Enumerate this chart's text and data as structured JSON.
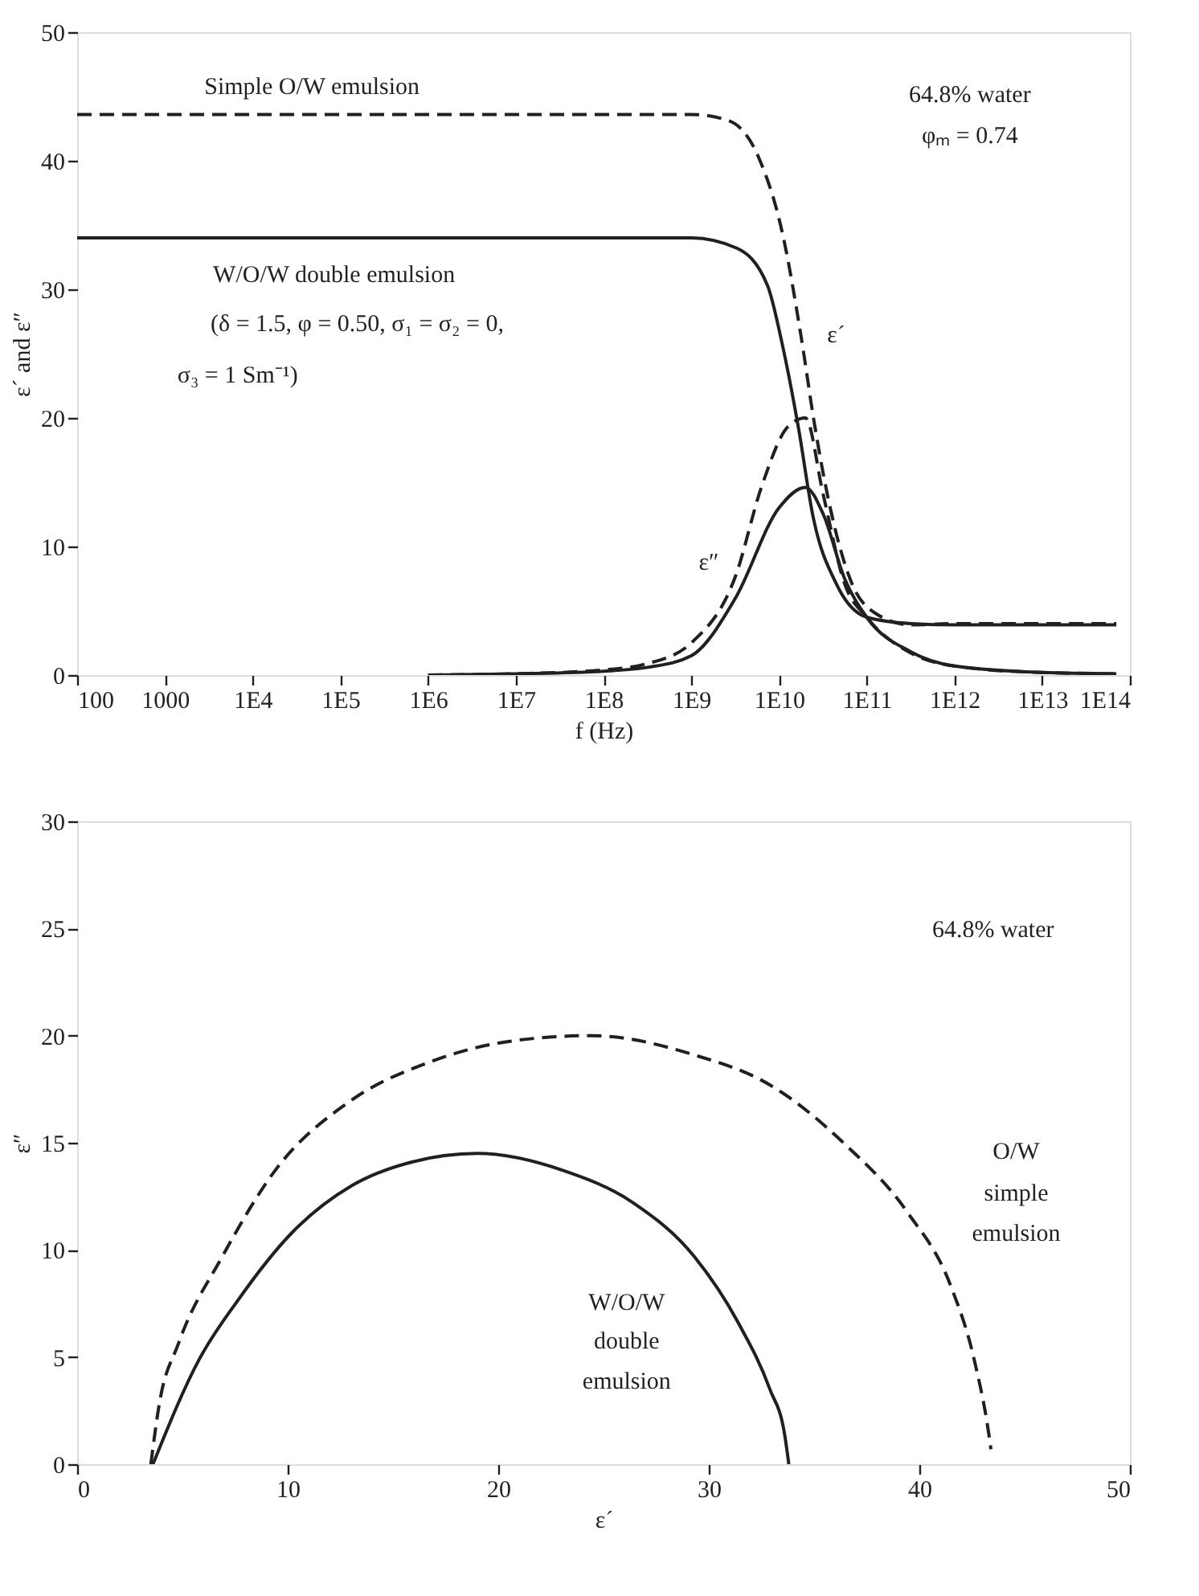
{
  "chart_data": [
    {
      "type": "line",
      "xlabel": "f (Hz)",
      "ylabel": "ε´ and ε″",
      "log": "x",
      "xlim": [
        100,
        100000000000000.0
      ],
      "ylim": [
        0,
        50
      ],
      "xticks": [
        100,
        {
          "value": 1000,
          "label": "1000"
        },
        {
          "value": 10000.0,
          "label": "1E4"
        },
        {
          "value": 100000.0,
          "label": "1E5"
        },
        {
          "value": 1000000.0,
          "label": "1E6"
        },
        {
          "value": 10000000.0,
          "label": "1E7"
        },
        {
          "value": 100000000.0,
          "label": "1E8"
        },
        {
          "value": 1000000000.0,
          "label": "1E9"
        },
        {
          "value": 10000000000.0,
          "label": "1E10"
        },
        {
          "value": 100000000000.0,
          "label": "1E11"
        },
        {
          "value": 1000000000000.0,
          "label": "1E12"
        },
        {
          "value": 10000000000000.0,
          "label": "1E13"
        },
        {
          "value": 100000000000000.0,
          "label": "1E14"
        }
      ],
      "yticks": [
        0,
        10,
        20,
        30,
        40,
        50
      ],
      "marker": "none",
      "series": [
        {
          "color": "#231f20",
          "line_style": "dashed",
          "x": [
            100,
            1000000000.0,
            2700000000.0,
            6000000000.0,
            11000000000.0,
            18000000000.0,
            25000000000.0,
            37000000000.0,
            68000000000.0,
            126000000000.0,
            320000000000.0,
            1000000000000.0,
            10000000000000.0,
            70000000000000.0
          ],
          "values": [
            43.6,
            43.6,
            43.1,
            40.1,
            34.3,
            26.2,
            19.8,
            13.5,
            7.1,
            4.8,
            3.9,
            4.0,
            4.0,
            4.0
          ]
        },
        {
          "color": "#231f20",
          "line_style": "solid",
          "x": [
            100,
            1000000000.0,
            3300000000.0,
            7400000000.0,
            11000000000.0,
            16600000000.0,
            24500000000.0,
            45000000000.0,
            100000000000.0,
            320000000000.0,
            1000000000000.0,
            10000000000000.0,
            70000000000000.0
          ],
          "values": [
            34.0,
            34.0,
            33.2,
            30.3,
            25.6,
            19.3,
            12.3,
            7.1,
            4.5,
            4.0,
            3.9,
            3.9,
            3.9
          ]
        },
        {
          "color": "#231f20",
          "line_style": "dashed",
          "x": [
            1000000.0,
            10000000.0,
            100000000.0,
            320000000.0,
            1000000000.0,
            3200000000.0,
            6300000000.0,
            12600000000.0,
            20000000000.0,
            32000000000.0,
            56000000000.0,
            100000000000.0,
            320000000000.0,
            1000000000000.0,
            10000000000000.0,
            70000000000000.0
          ],
          "values": [
            0.0,
            0.1,
            0.4,
            0.9,
            2.5,
            7.7,
            14.6,
            19.3,
            20.0,
            14.0,
            7.1,
            4.5,
            1.7,
            0.7,
            0.2,
            0.1
          ]
        },
        {
          "color": "#231f20",
          "line_style": "solid",
          "x": [
            1000000.0,
            10000000.0,
            100000000.0,
            320000000.0,
            1000000000.0,
            3200000000.0,
            10000000000.0,
            20000000000.0,
            32000000000.0,
            56000000000.0,
            100000000000.0,
            320000000000.0,
            1000000000000.0,
            10000000000000.0,
            70000000000000.0
          ],
          "values": [
            0.0,
            0.1,
            0.3,
            0.6,
            1.5,
            6.0,
            13.0,
            14.6,
            12.5,
            7.5,
            4.5,
            1.8,
            0.7,
            0.2,
            0.1
          ]
        }
      ],
      "annotations": [
        "Simple O/W emulsion",
        "64.8% water",
        "φₘ = 0.74",
        "W/O/W double emulsion",
        "(δ = 1.5, φ = 0.50, σ₁ = σ₂ = 0,",
        "σ₃ = 1 Sm⁻¹)",
        "ε´",
        "ε″"
      ]
    },
    {
      "type": "line",
      "xlabel": "ε´",
      "ylabel": "ε″",
      "xlim": [
        0,
        50
      ],
      "ylim": [
        0,
        30
      ],
      "xticks": [
        0,
        10,
        20,
        30,
        40,
        50
      ],
      "yticks": [
        0,
        5,
        10,
        15,
        20,
        25,
        30
      ],
      "marker": "none",
      "series": [
        {
          "color": "#231f20",
          "line_style": "dashed",
          "x": [
            3.5,
            3.9,
            4.8,
            6.9,
            9.4,
            13.05,
            16.7,
            20.3,
            24.4,
            29.3,
            32.9,
            36.5,
            39.4,
            41.5,
            42.6,
            43.3,
            43.4
          ],
          "values": [
            0,
            2.8,
            5.6,
            9.7,
            13.7,
            17.0,
            18.75,
            19.7,
            20.0,
            19.1,
            17.7,
            14.9,
            11.8,
            8.3,
            4.9,
            1.4,
            0.7
          ]
        },
        {
          "color": "#231f20",
          "line_style": "solid",
          "x": [
            3.6,
            5.8,
            7.6,
            10.2,
            13.05,
            15.9,
            19.0,
            23.1,
            26.4,
            29.3,
            31.4,
            32.9,
            33.6,
            33.8
          ],
          "values": [
            0,
            4.9,
            7.6,
            10.8,
            13.0,
            14.1,
            14.5,
            13.7,
            12.2,
            9.7,
            6.6,
            3.5,
            1.4,
            0
          ]
        }
      ],
      "annotations": [
        "64.8% water",
        "O/W",
        "simple",
        "emulsion",
        "W/O/W",
        "double",
        "emulsion"
      ]
    }
  ]
}
